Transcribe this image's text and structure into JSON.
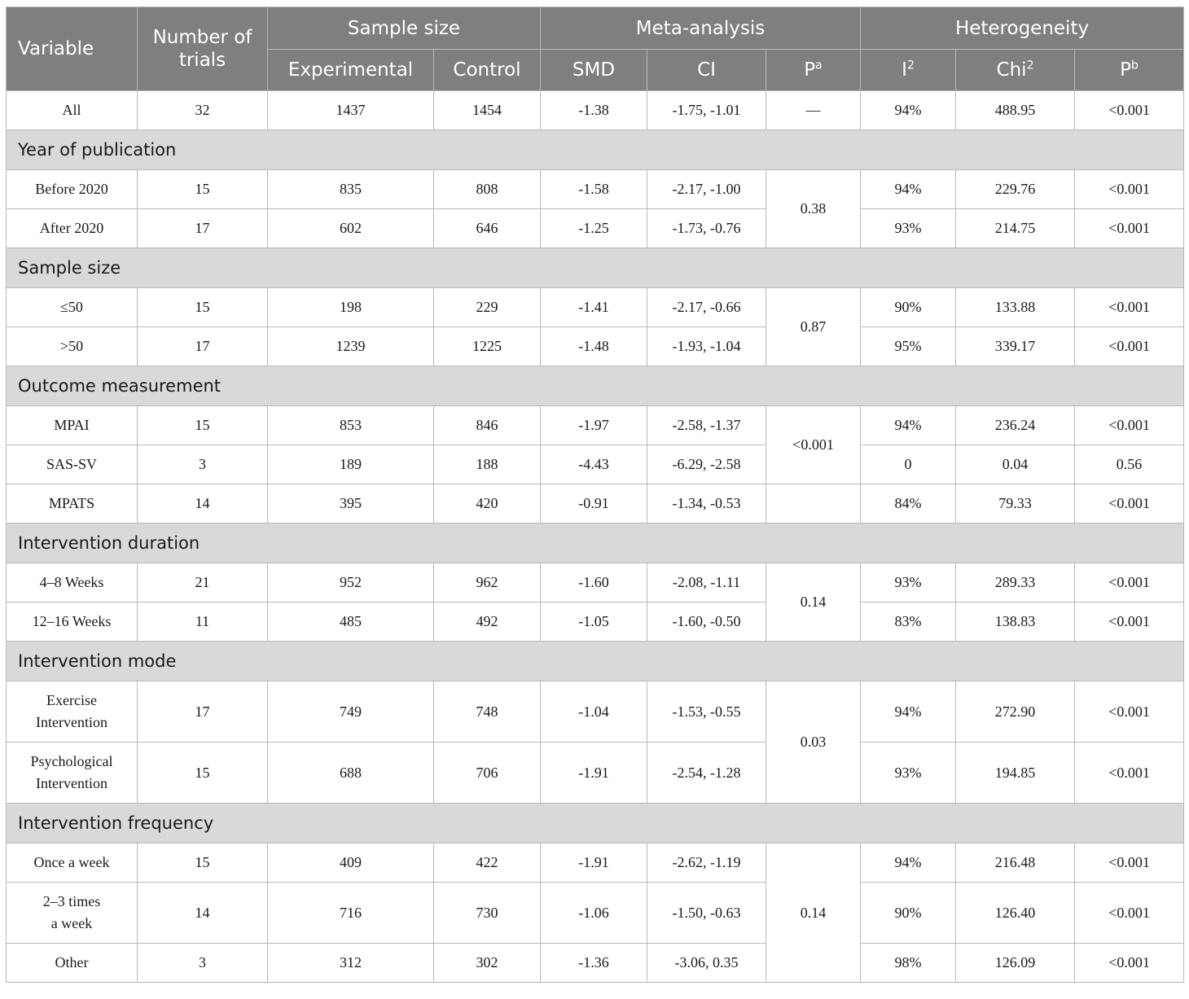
{
  "header": {
    "variable": "Variable",
    "trials": "Number of trials",
    "sample_size": "Sample size",
    "meta_analysis": "Meta-analysis",
    "heterogeneity": "Heterogeneity",
    "experimental": "Experimental",
    "control": "Control",
    "smd": "SMD",
    "ci": "CI",
    "p_a": "P",
    "p_a_sup": "a",
    "i2": "I",
    "i2_sup": "2",
    "chi2": "Chi",
    "chi2_sup": "2",
    "p_b": "P",
    "p_b_sup": "b"
  },
  "all": {
    "variable": "All",
    "trials": "32",
    "experimental": "1437",
    "control": "1454",
    "smd": "-1.38",
    "ci": "-1.75, -1.01",
    "p_a": "—",
    "i2": "94%",
    "chi2": "488.95",
    "p_b": "<0.001"
  },
  "groups": [
    {
      "title": "Year of publication",
      "p_a": "0.38",
      "rows": [
        {
          "variable": "Before 2020",
          "trials": "15",
          "experimental": "835",
          "control": "808",
          "smd": "-1.58",
          "ci": "-2.17, -1.00",
          "i2": "94%",
          "chi2": "229.76",
          "p_b": "<0.001"
        },
        {
          "variable": "After 2020",
          "trials": "17",
          "experimental": "602",
          "control": "646",
          "smd": "-1.25",
          "ci": "-1.73, -0.76",
          "i2": "93%",
          "chi2": "214.75",
          "p_b": "<0.001"
        }
      ]
    },
    {
      "title": "Sample size",
      "p_a": "0.87",
      "rows": [
        {
          "variable": "≤50",
          "trials": "15",
          "experimental": "198",
          "control": "229",
          "smd": "-1.41",
          "ci": "-2.17, -0.66",
          "i2": "90%",
          "chi2": "133.88",
          "p_b": "<0.001"
        },
        {
          "variable": ">50",
          "trials": "17",
          "experimental": "1239",
          "control": "1225",
          "smd": "-1.48",
          "ci": "-1.93, -1.04",
          "i2": "95%",
          "chi2": "339.17",
          "p_b": "<0.001"
        }
      ]
    },
    {
      "title": "Outcome measurement",
      "p_a": "<0.001",
      "rows": [
        {
          "variable": "MPAI",
          "trials": "15",
          "experimental": "853",
          "control": "846",
          "smd": "-1.97",
          "ci": "-2.58, -1.37",
          "i2": "94%",
          "chi2": "236.24",
          "p_b": "<0.001"
        },
        {
          "variable": "SAS-SV",
          "trials": "3",
          "experimental": "189",
          "control": "188",
          "smd": "-4.43",
          "ci": "-6.29, -2.58",
          "i2": "0",
          "chi2": "0.04",
          "p_b": "0.56"
        },
        {
          "variable": "MPATS",
          "trials": "14",
          "experimental": "395",
          "control": "420",
          "smd": "-0.91",
          "ci": "-1.34, -0.53",
          "i2": "84%",
          "chi2": "79.33",
          "p_b": "<0.001"
        }
      ]
    },
    {
      "title": "Intervention duration",
      "p_a": "0.14",
      "rows": [
        {
          "variable": "4–8 Weeks",
          "trials": "21",
          "experimental": "952",
          "control": "962",
          "smd": "-1.60",
          "ci": "-2.08, -1.11",
          "i2": "93%",
          "chi2": "289.33",
          "p_b": "<0.001"
        },
        {
          "variable": "12–16 Weeks",
          "trials": "11",
          "experimental": "485",
          "control": "492",
          "smd": "-1.05",
          "ci": "-1.60, -0.50",
          "i2": "83%",
          "chi2": "138.83",
          "p_b": "<0.001"
        }
      ]
    },
    {
      "title": "Intervention mode",
      "p_a": "0.03",
      "rows": [
        {
          "variable_line1": "Exercise",
          "variable_line2": "Intervention",
          "trials": "17",
          "experimental": "749",
          "control": "748",
          "smd": "-1.04",
          "ci": "-1.53, -0.55",
          "i2": "94%",
          "chi2": "272.90",
          "p_b": "<0.001"
        },
        {
          "variable_line1": "Psychological",
          "variable_line2": "Intervention",
          "trials": "15",
          "experimental": "688",
          "control": "706",
          "smd": "-1.91",
          "ci": "-2.54, -1.28",
          "i2": "93%",
          "chi2": "194.85",
          "p_b": "<0.001"
        }
      ]
    },
    {
      "title": "Intervention frequency",
      "p_a": "0.14",
      "rows": [
        {
          "variable": "Once a week",
          "trials": "15",
          "experimental": "409",
          "control": "422",
          "smd": "-1.91",
          "ci": "-2.62, -1.19",
          "i2": "94%",
          "chi2": "216.48",
          "p_b": "<0.001"
        },
        {
          "variable_line1": "2–3 times",
          "variable_line2": "a week",
          "trials": "14",
          "experimental": "716",
          "control": "730",
          "smd": "-1.06",
          "ci": "-1.50, -0.63",
          "i2": "90%",
          "chi2": "126.40",
          "p_b": "<0.001"
        },
        {
          "variable": "Other",
          "trials": "3",
          "experimental": "312",
          "control": "302",
          "smd": "-1.36",
          "ci": "-3.06, 0.35",
          "i2": "98%",
          "chi2": "126.09",
          "p_b": "<0.001"
        }
      ]
    }
  ]
}
